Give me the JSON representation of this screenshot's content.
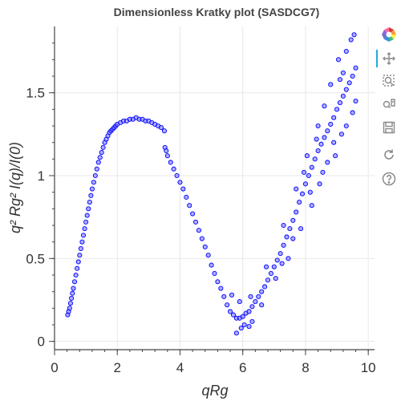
{
  "chart_data": {
    "type": "scatter",
    "title": "Dimensionless Kratky plot (SASDCG7)",
    "xlabel": "qRg",
    "ylabel": "q² Rg² I(q)/I(0)",
    "xlim": [
      0,
      10.2
    ],
    "ylim": [
      -0.05,
      1.9
    ],
    "x_ticks": [
      "0",
      "2",
      "4",
      "6",
      "8",
      "10"
    ],
    "y_ticks": [
      "0",
      "0.5",
      "1",
      "1.5"
    ],
    "grid": true,
    "marker": {
      "shape": "circle",
      "stroke": "#0000ff",
      "fill": "#6a6aff"
    },
    "series": [
      {
        "points": [
          [
            0.42,
            0.16
          ],
          [
            0.45,
            0.18
          ],
          [
            0.48,
            0.2
          ],
          [
            0.51,
            0.23
          ],
          [
            0.54,
            0.26
          ],
          [
            0.57,
            0.29
          ],
          [
            0.6,
            0.32
          ],
          [
            0.64,
            0.36
          ],
          [
            0.68,
            0.4
          ],
          [
            0.72,
            0.44
          ],
          [
            0.76,
            0.48
          ],
          [
            0.8,
            0.52
          ],
          [
            0.84,
            0.56
          ],
          [
            0.88,
            0.6
          ],
          [
            0.92,
            0.64
          ],
          [
            0.96,
            0.68
          ],
          [
            1.0,
            0.72
          ],
          [
            1.04,
            0.76
          ],
          [
            1.08,
            0.8
          ],
          [
            1.12,
            0.84
          ],
          [
            1.16,
            0.88
          ],
          [
            1.2,
            0.92
          ],
          [
            1.25,
            0.96
          ],
          [
            1.3,
            1.0
          ],
          [
            1.35,
            1.04
          ],
          [
            1.4,
            1.08
          ],
          [
            1.45,
            1.11
          ],
          [
            1.5,
            1.14
          ],
          [
            1.55,
            1.17
          ],
          [
            1.6,
            1.2
          ],
          [
            1.65,
            1.22
          ],
          [
            1.7,
            1.24
          ],
          [
            1.75,
            1.26
          ],
          [
            1.8,
            1.27
          ],
          [
            1.85,
            1.28
          ],
          [
            1.9,
            1.29
          ],
          [
            1.95,
            1.3
          ],
          [
            2.0,
            1.31
          ],
          [
            2.1,
            1.32
          ],
          [
            2.2,
            1.33
          ],
          [
            2.3,
            1.33
          ],
          [
            2.4,
            1.34
          ],
          [
            2.5,
            1.34
          ],
          [
            2.6,
            1.35
          ],
          [
            2.7,
            1.34
          ],
          [
            2.8,
            1.34
          ],
          [
            2.9,
            1.33
          ],
          [
            3.0,
            1.33
          ],
          [
            3.1,
            1.32
          ],
          [
            3.2,
            1.31
          ],
          [
            3.3,
            1.3
          ],
          [
            3.4,
            1.29
          ],
          [
            3.5,
            1.27
          ],
          [
            3.52,
            1.17
          ],
          [
            3.56,
            1.15
          ],
          [
            3.6,
            1.12
          ],
          [
            3.7,
            1.08
          ],
          [
            3.8,
            1.04
          ],
          [
            3.9,
            1.0
          ],
          [
            4.0,
            0.96
          ],
          [
            4.1,
            0.92
          ],
          [
            4.2,
            0.87
          ],
          [
            4.3,
            0.82
          ],
          [
            4.4,
            0.77
          ],
          [
            4.5,
            0.72
          ],
          [
            4.6,
            0.67
          ],
          [
            4.7,
            0.62
          ],
          [
            4.8,
            0.57
          ],
          [
            4.9,
            0.52
          ],
          [
            5.0,
            0.46
          ],
          [
            5.1,
            0.41
          ],
          [
            5.2,
            0.36
          ],
          [
            5.3,
            0.32
          ],
          [
            5.4,
            0.27
          ],
          [
            5.5,
            0.22
          ],
          [
            5.6,
            0.18
          ],
          [
            5.7,
            0.16
          ],
          [
            5.8,
            0.14
          ],
          [
            5.9,
            0.14
          ],
          [
            6.0,
            0.15
          ],
          [
            6.1,
            0.17
          ],
          [
            6.2,
            0.18
          ],
          [
            6.3,
            0.21
          ],
          [
            6.4,
            0.24
          ],
          [
            6.5,
            0.27
          ],
          [
            6.6,
            0.3
          ],
          [
            6.7,
            0.33
          ],
          [
            6.8,
            0.37
          ],
          [
            6.9,
            0.41
          ],
          [
            7.0,
            0.45
          ],
          [
            7.1,
            0.49
          ],
          [
            7.2,
            0.53
          ],
          [
            7.3,
            0.58
          ],
          [
            7.4,
            0.63
          ],
          [
            7.5,
            0.68
          ],
          [
            7.6,
            0.73
          ],
          [
            7.7,
            0.78
          ],
          [
            7.8,
            0.84
          ],
          [
            7.9,
            0.89
          ],
          [
            8.0,
            0.95
          ],
          [
            8.1,
            1.0
          ],
          [
            8.2,
            1.05
          ],
          [
            8.3,
            1.1
          ],
          [
            8.4,
            1.15
          ],
          [
            8.5,
            1.19
          ],
          [
            8.6,
            1.23
          ],
          [
            8.7,
            1.27
          ],
          [
            8.8,
            1.31
          ],
          [
            8.9,
            1.35
          ],
          [
            9.0,
            1.4
          ],
          [
            9.1,
            1.44
          ],
          [
            9.2,
            1.48
          ],
          [
            9.3,
            1.52
          ],
          [
            9.4,
            1.56
          ],
          [
            9.5,
            1.6
          ],
          [
            9.6,
            1.65
          ],
          [
            5.8,
            0.05
          ],
          [
            5.95,
            0.08
          ],
          [
            6.05,
            0.1
          ],
          [
            6.2,
            0.09
          ],
          [
            6.3,
            0.12
          ],
          [
            5.65,
            0.28
          ],
          [
            5.9,
            0.24
          ],
          [
            6.25,
            0.27
          ],
          [
            6.6,
            0.22
          ],
          [
            6.75,
            0.45
          ],
          [
            7.05,
            0.38
          ],
          [
            7.3,
            0.7
          ],
          [
            7.45,
            0.5
          ],
          [
            7.7,
            0.92
          ],
          [
            7.85,
            0.68
          ],
          [
            8.05,
            1.12
          ],
          [
            8.2,
            0.82
          ],
          [
            8.4,
            1.3
          ],
          [
            8.45,
            0.95
          ],
          [
            8.6,
            1.42
          ],
          [
            8.7,
            1.08
          ],
          [
            8.8,
            1.55
          ],
          [
            8.95,
            1.12
          ],
          [
            9.05,
            1.7
          ],
          [
            9.15,
            1.25
          ],
          [
            9.2,
            1.62
          ],
          [
            9.3,
            1.3
          ],
          [
            9.45,
            1.82
          ],
          [
            9.5,
            1.38
          ],
          [
            9.55,
            1.85
          ],
          [
            9.6,
            1.45
          ],
          [
            9.3,
            1.75
          ],
          [
            9.1,
            1.58
          ],
          [
            8.9,
            1.2
          ],
          [
            8.55,
            1.02
          ],
          [
            8.35,
            1.22
          ],
          [
            8.15,
            0.9
          ],
          [
            7.95,
            1.02
          ],
          [
            7.6,
            0.62
          ],
          [
            7.25,
            0.47
          ]
        ]
      }
    ]
  },
  "toolbar": {
    "tools": [
      "bokeh-logo-icon",
      "pan-icon",
      "box-zoom-icon",
      "wheel-zoom-icon",
      "save-icon",
      "reset-icon",
      "help-icon"
    ],
    "active": "pan-icon"
  }
}
